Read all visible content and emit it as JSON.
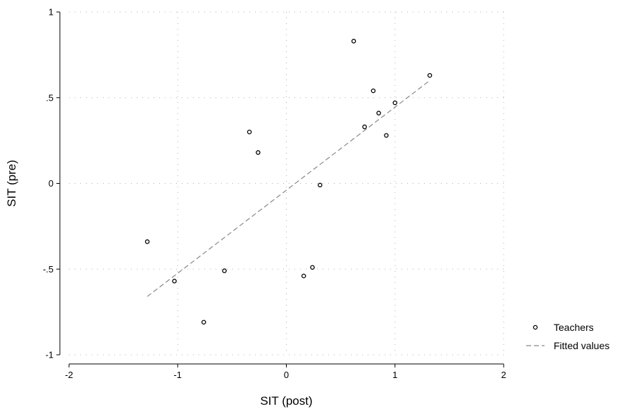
{
  "chart_data": {
    "type": "scatter",
    "xlabel": "SIT (post)",
    "ylabel": "SIT (pre)",
    "xlim": [
      -2,
      2
    ],
    "ylim": [
      -1,
      1
    ],
    "x_ticks": [
      -2,
      -1,
      0,
      1,
      2
    ],
    "x_tick_labels": [
      "-2",
      "-1",
      "0",
      "1",
      "2"
    ],
    "y_ticks": [
      -1,
      -0.5,
      0,
      0.5,
      1
    ],
    "y_tick_labels": [
      "-1",
      "-.5",
      "0",
      ".5",
      "1"
    ],
    "grid": true,
    "legend_position": "bottom-right",
    "series": [
      {
        "name": "Teachers",
        "kind": "scatter",
        "color": "#000000",
        "points": [
          {
            "x": -1.28,
            "y": -0.34
          },
          {
            "x": -1.03,
            "y": -0.57
          },
          {
            "x": -0.76,
            "y": -0.81
          },
          {
            "x": -0.57,
            "y": -0.51
          },
          {
            "x": -0.34,
            "y": 0.3
          },
          {
            "x": -0.26,
            "y": 0.18
          },
          {
            "x": 0.16,
            "y": -0.54
          },
          {
            "x": 0.24,
            "y": -0.49
          },
          {
            "x": 0.31,
            "y": -0.01
          },
          {
            "x": 0.62,
            "y": 0.83
          },
          {
            "x": 0.72,
            "y": 0.33
          },
          {
            "x": 0.8,
            "y": 0.54
          },
          {
            "x": 0.85,
            "y": 0.41
          },
          {
            "x": 0.92,
            "y": 0.28
          },
          {
            "x": 1.0,
            "y": 0.47
          },
          {
            "x": 1.32,
            "y": 0.63
          }
        ]
      },
      {
        "name": "Fitted values",
        "kind": "line",
        "color": "#888888",
        "points": [
          {
            "x": -1.28,
            "y": -0.66
          },
          {
            "x": 1.32,
            "y": 0.6
          }
        ]
      }
    ]
  }
}
